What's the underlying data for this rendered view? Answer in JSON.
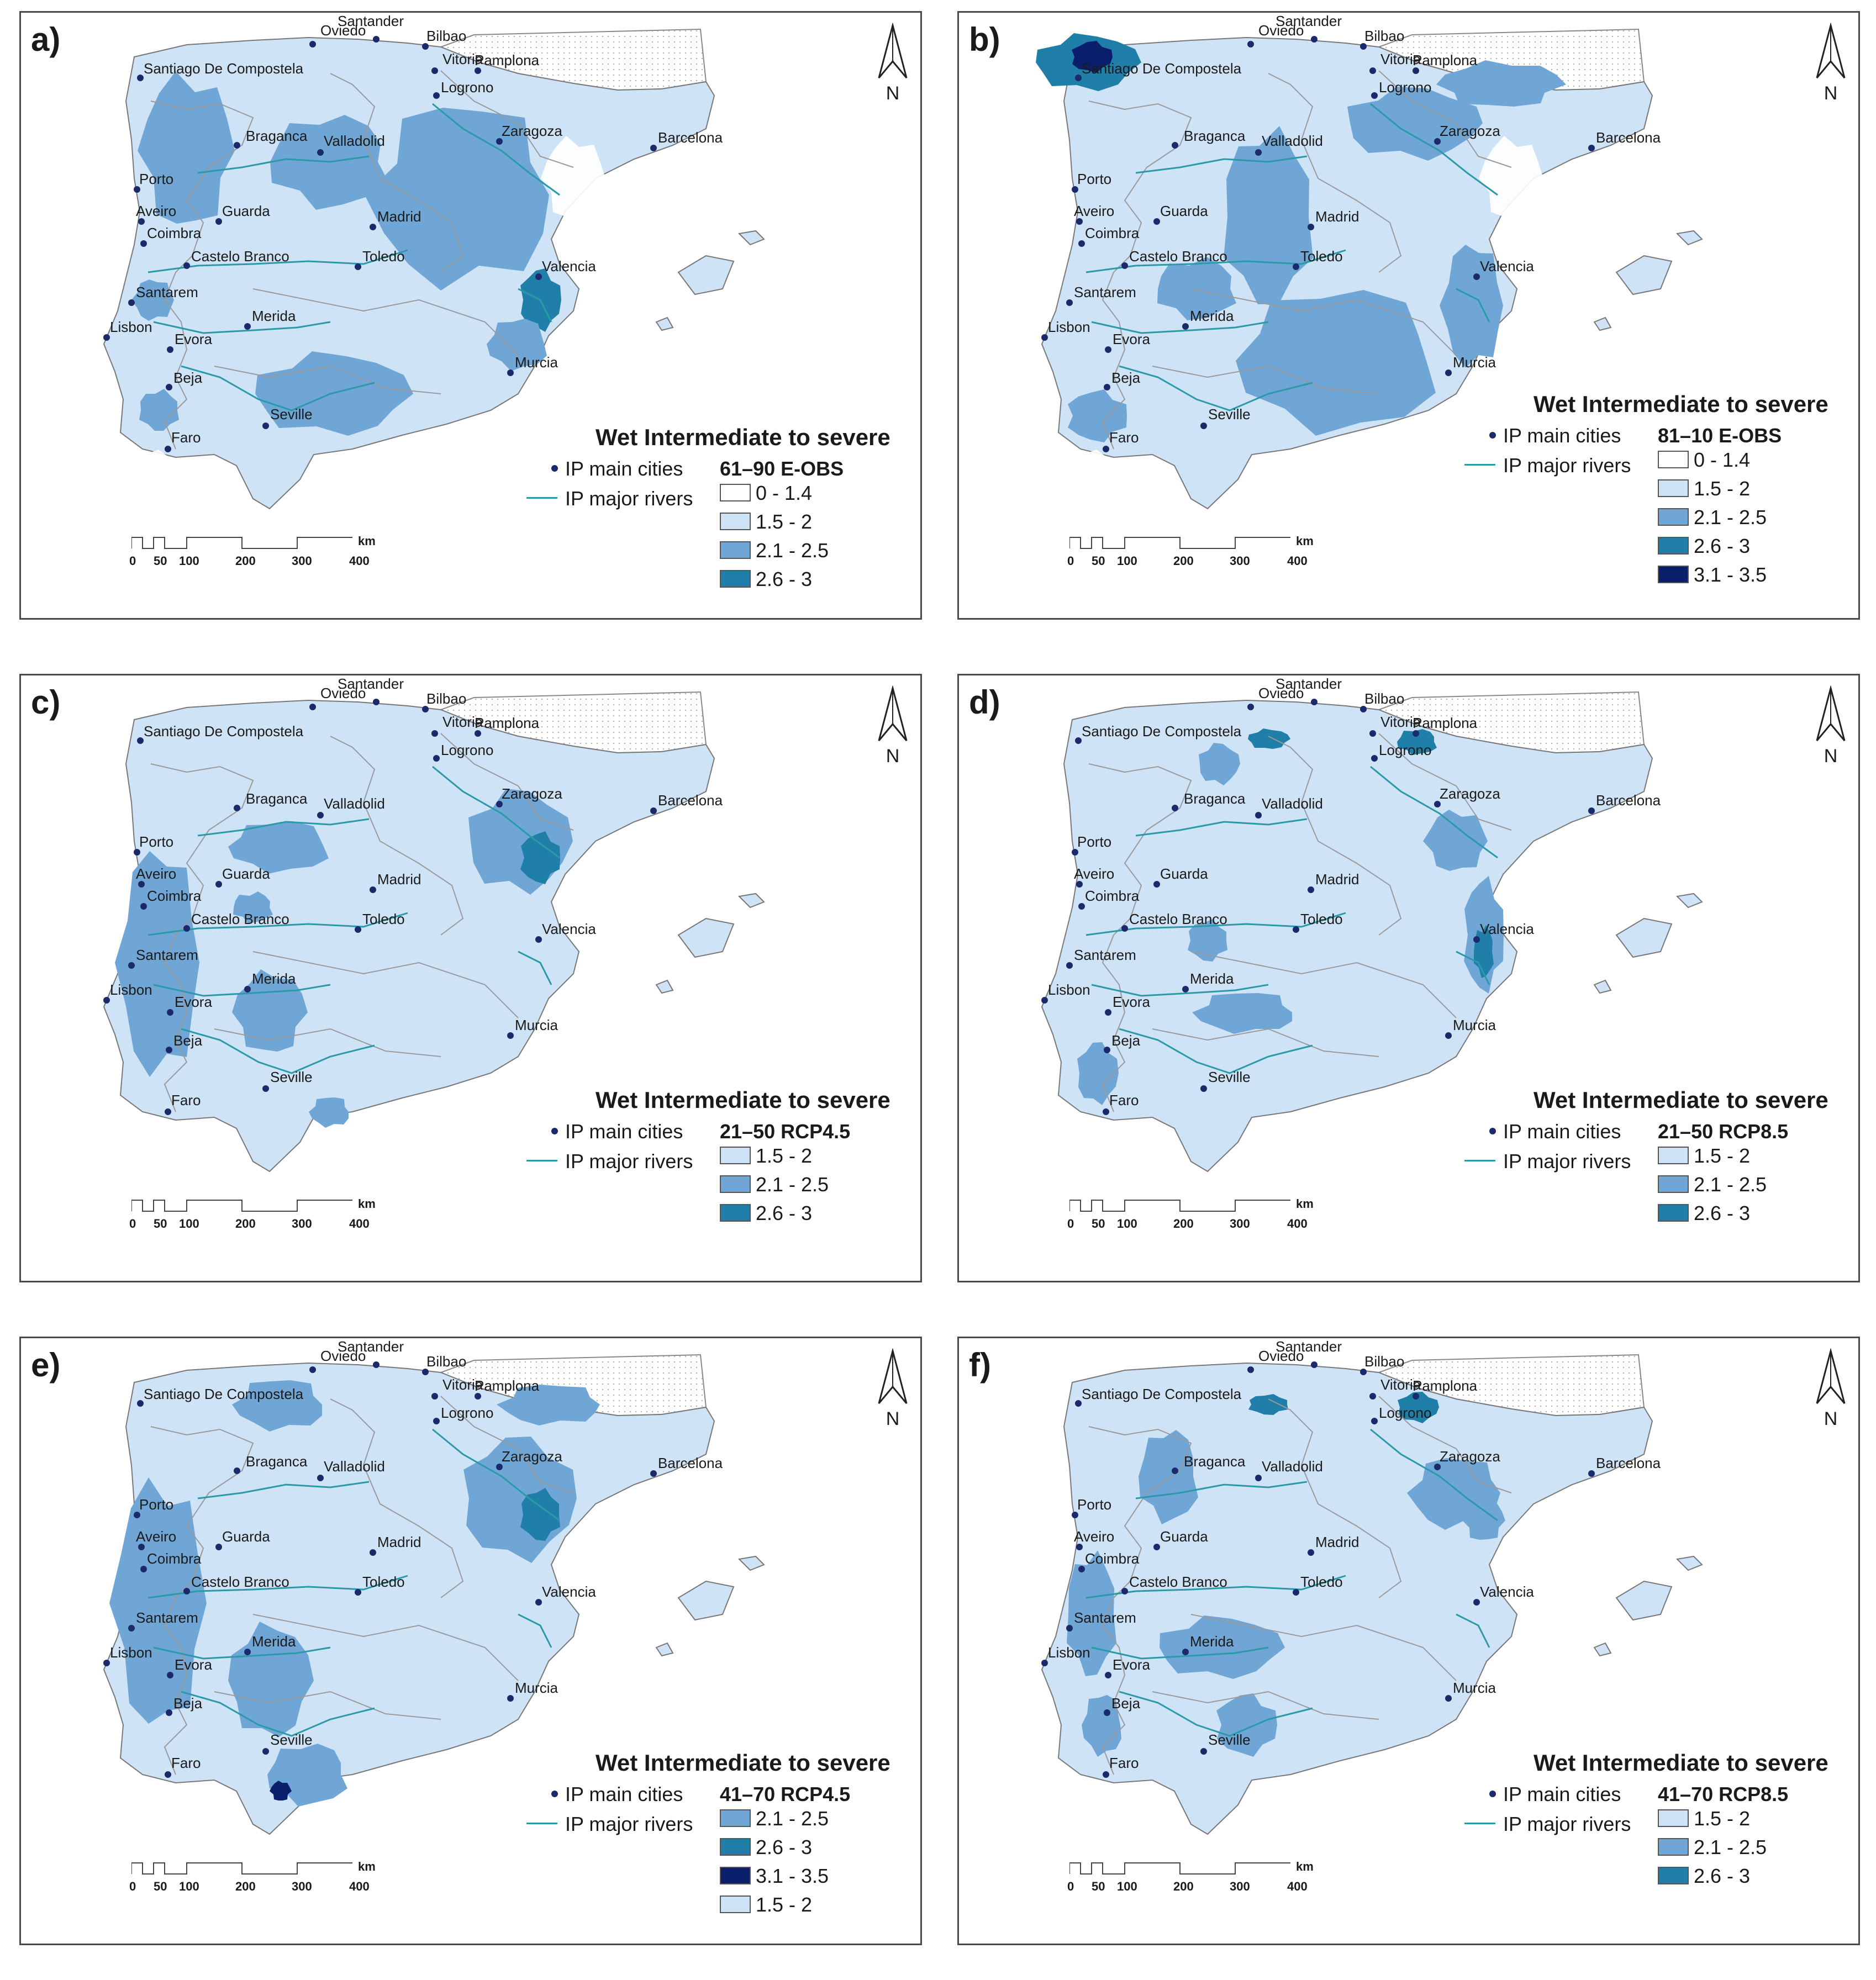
{
  "panels": [
    {
      "id": "a",
      "label": "a)",
      "title": "Wet Intermediate to severe",
      "period": "61–90 E-OBS",
      "legend": [
        "IP main cities",
        "IP major rivers"
      ],
      "classes": [
        {
          "label": "0 - 1.4",
          "color": "#ffffff"
        },
        {
          "label": "1.5 - 2",
          "color": "#cfe3f7"
        },
        {
          "label": "2.1 - 2.5",
          "color": "#6fa6d6"
        },
        {
          "label": "2.6 - 3",
          "color": "#1f7fa8"
        }
      ]
    },
    {
      "id": "b",
      "label": "b)",
      "title": "Wet Intermediate to severe",
      "period": "81–10 E-OBS",
      "legend": [
        "IP main cities",
        "IP major rivers"
      ],
      "classes": [
        {
          "label": "0 - 1.4",
          "color": "#ffffff"
        },
        {
          "label": "1.5 - 2",
          "color": "#cfe3f7"
        },
        {
          "label": "2.1 - 2.5",
          "color": "#6fa6d6"
        },
        {
          "label": "2.6 - 3",
          "color": "#1f7fa8"
        },
        {
          "label": "3.1 - 3.5",
          "color": "#0a1f6b"
        }
      ]
    },
    {
      "id": "c",
      "label": "c)",
      "title": "Wet Intermediate to severe",
      "period": "21–50 RCP4.5",
      "legend": [
        "IP main cities",
        "IP major rivers"
      ],
      "classes": [
        {
          "label": "1.5 - 2",
          "color": "#cfe3f7"
        },
        {
          "label": "2.1 - 2.5",
          "color": "#6fa6d6"
        },
        {
          "label": "2.6 - 3",
          "color": "#1f7fa8"
        }
      ]
    },
    {
      "id": "d",
      "label": "d)",
      "title": "Wet Intermediate to severe",
      "period": "21–50 RCP8.5",
      "legend": [
        "IP main cities",
        "IP major rivers"
      ],
      "classes": [
        {
          "label": "1.5 - 2",
          "color": "#cfe3f7"
        },
        {
          "label": "2.1 - 2.5",
          "color": "#6fa6d6"
        },
        {
          "label": "2.6 - 3",
          "color": "#1f7fa8"
        }
      ]
    },
    {
      "id": "e",
      "label": "e)",
      "title": "Wet Intermediate to severe",
      "period": "41–70 RCP4.5",
      "legend": [
        "IP main cities",
        "IP major rivers"
      ],
      "classes": [
        {
          "label": "2.1 - 2.5",
          "color": "#6fa6d6"
        },
        {
          "label": "2.6 - 3",
          "color": "#1f7fa8"
        },
        {
          "label": "3.1 - 3.5",
          "color": "#0a1f6b"
        },
        {
          "label": "1.5 - 2",
          "color": "#cfe3f7"
        }
      ]
    },
    {
      "id": "f",
      "label": "f)",
      "title": "Wet Intermediate to severe",
      "period": "41–70 RCP8.5",
      "legend": [
        "IP main cities",
        "IP major rivers"
      ],
      "classes": [
        {
          "label": "1.5 - 2",
          "color": "#cfe3f7"
        },
        {
          "label": "2.1 - 2.5",
          "color": "#6fa6d6"
        },
        {
          "label": "2.6 - 3",
          "color": "#1f7fa8"
        }
      ]
    }
  ],
  "north_label": "N",
  "scale": {
    "ticks": [
      "0",
      "50",
      "100",
      "200",
      "300",
      "400"
    ],
    "unit": "km"
  },
  "cities": [
    "Oviedo",
    "Santander",
    "Bilbao",
    "Vitoria",
    "Pamplona",
    "Logrono",
    "Santiago De Compostela",
    "Braganca",
    "Valladolid",
    "Zaragoza",
    "Barcelona",
    "Porto",
    "Aveiro",
    "Guarda",
    "Coimbra",
    "Madrid",
    "Castelo Branco",
    "Toledo",
    "Valencia",
    "Santarem",
    "Lisbon",
    "Merida",
    "Evora",
    "Beja",
    "Murcia",
    "Seville",
    "Faro"
  ],
  "colors": {
    "class0": "#ffffff",
    "class1": "#cfe3f7",
    "class2": "#6fa6d6",
    "class3": "#1f7fa8",
    "class4": "#0a1f6b",
    "river": "#2a9aa8",
    "border": "#9a9a9a",
    "dot": "#1b2a6b"
  }
}
